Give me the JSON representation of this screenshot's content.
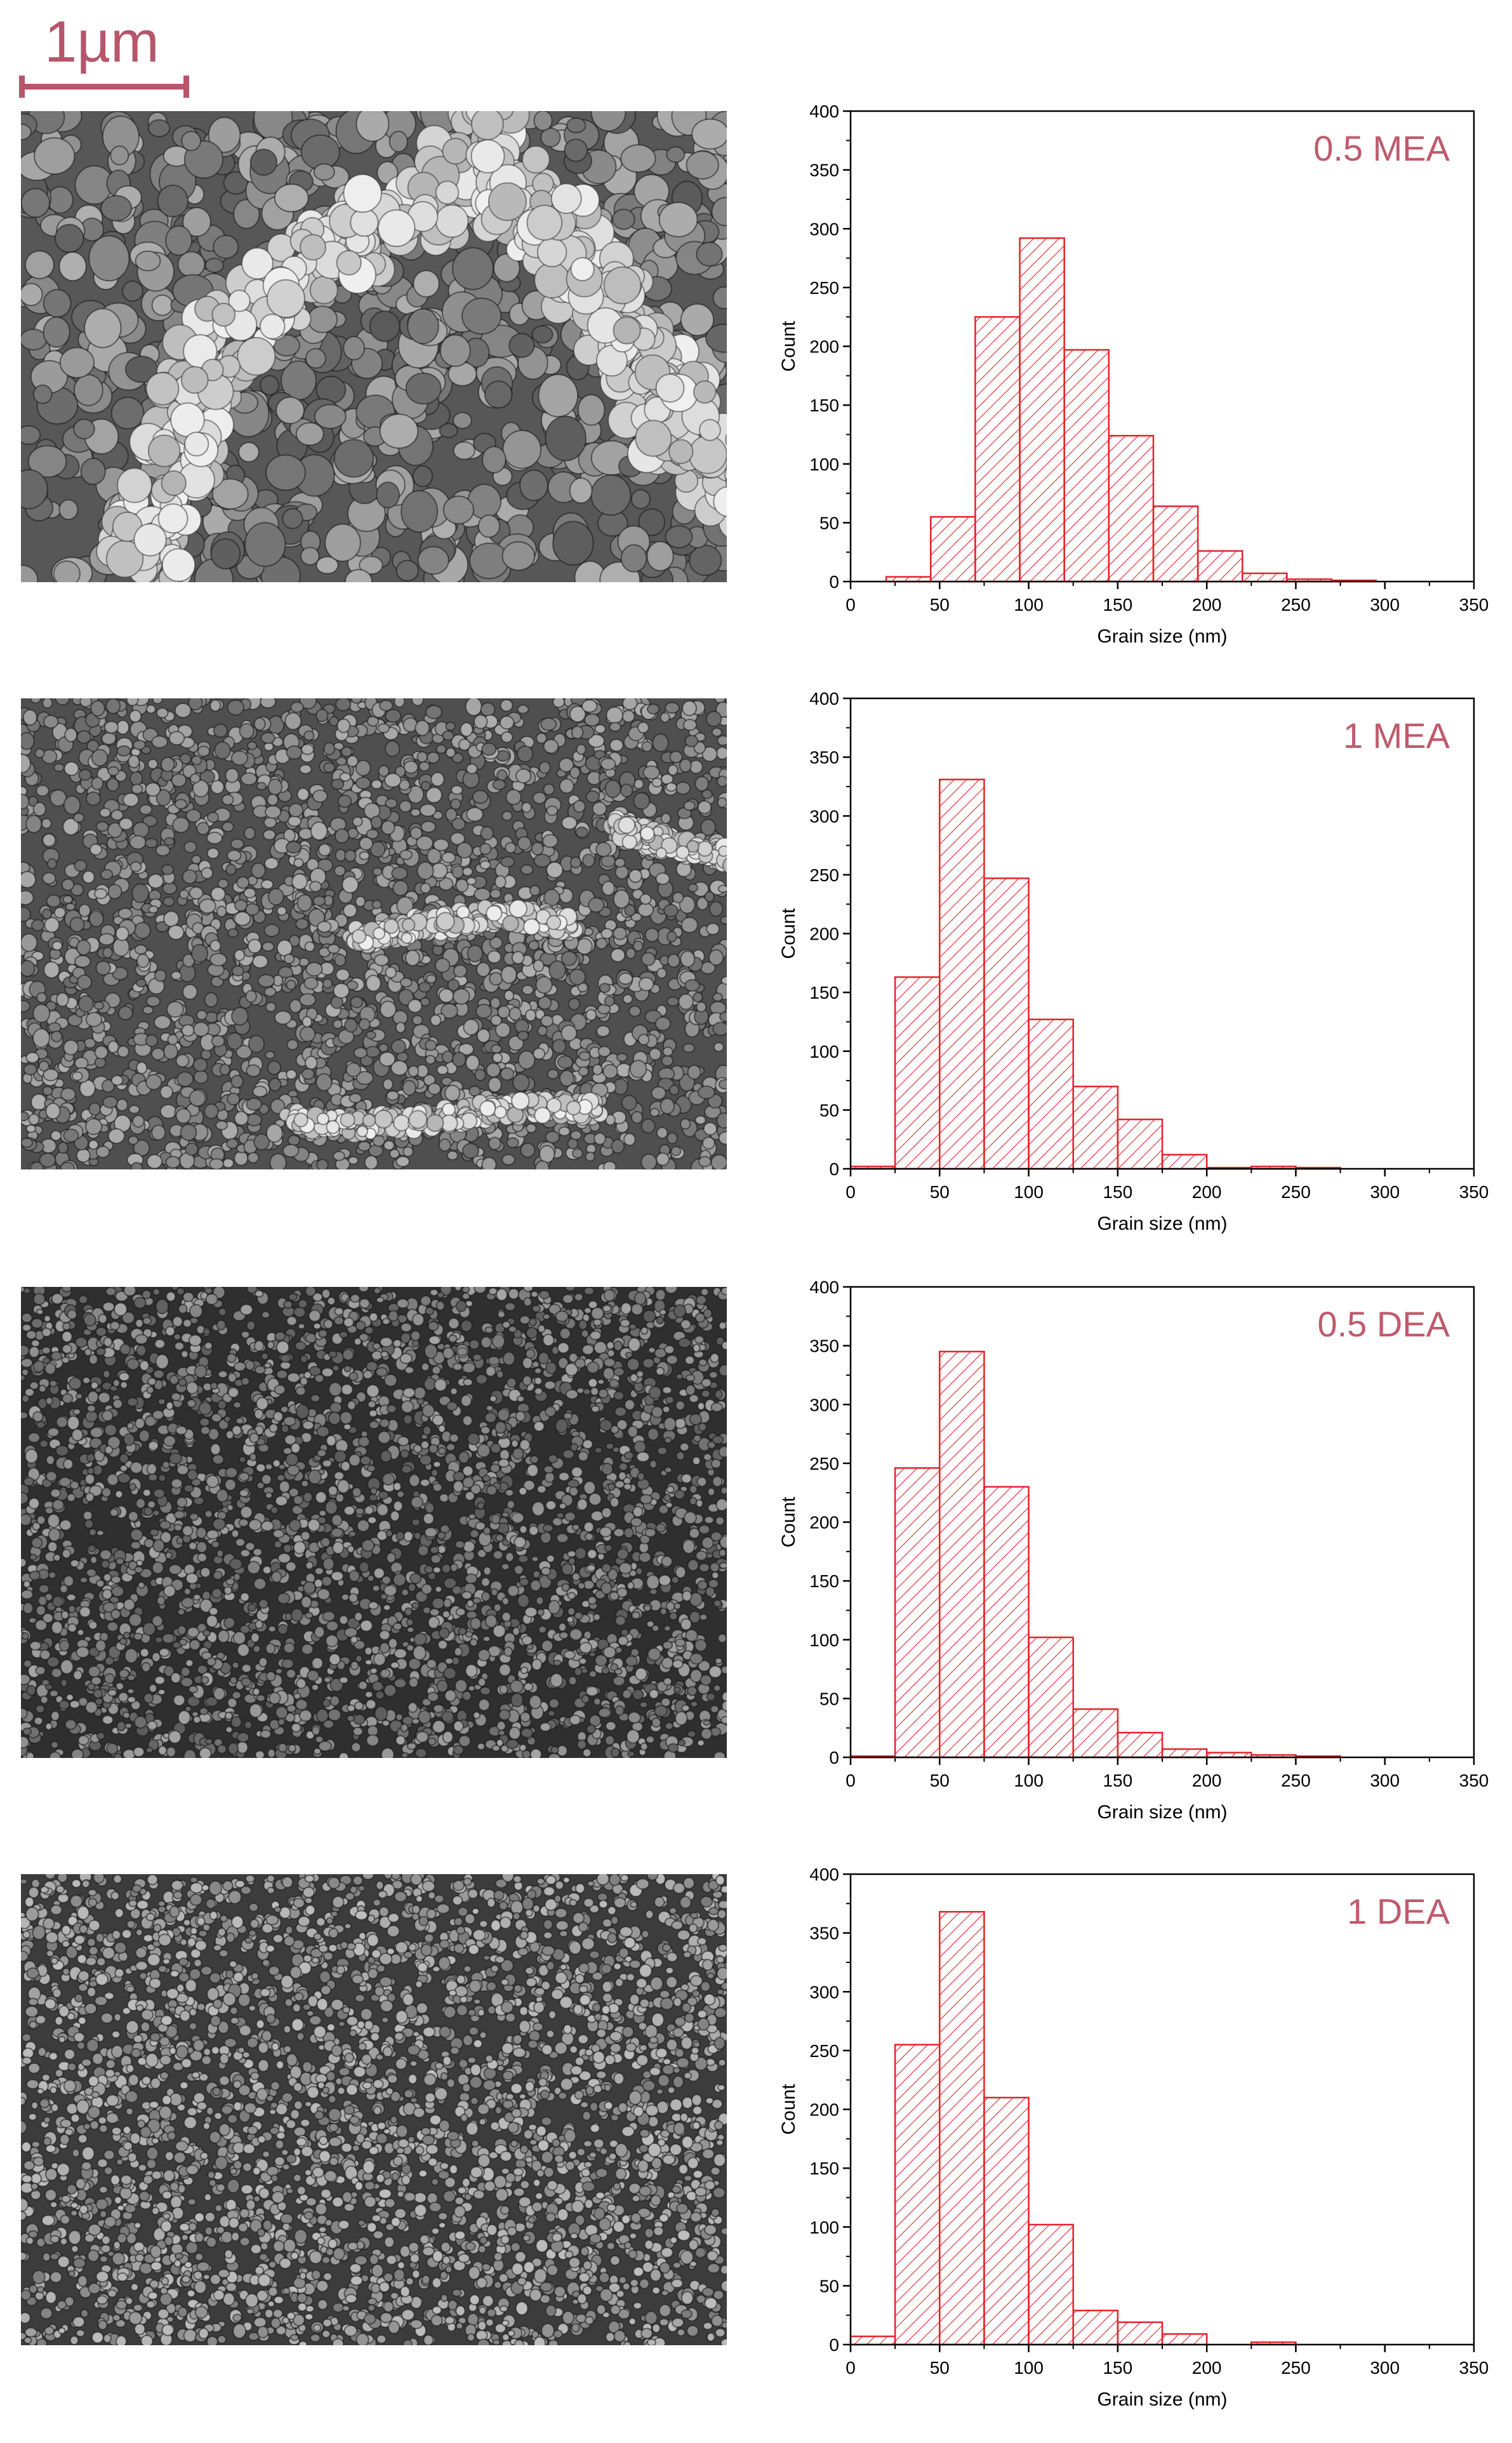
{
  "scale_bar": {
    "label": "1µm",
    "color": "#b5566a"
  },
  "colors": {
    "bar_stroke": "#e8202a",
    "label_color": "#c05a6c"
  },
  "chart_data": [
    {
      "type": "bar",
      "title": "0.5 MEA",
      "xlabel": "Grain size (nm)",
      "ylabel": "Count",
      "xlim": [
        0,
        350
      ],
      "ylim": [
        0,
        400
      ],
      "xticks": [
        0,
        50,
        100,
        150,
        200,
        250,
        300,
        350
      ],
      "yticks": [
        0,
        50,
        100,
        150,
        200,
        250,
        300,
        350,
        400
      ],
      "bin_width": 25,
      "bins": [
        {
          "x0": 20,
          "x1": 45,
          "count": 4
        },
        {
          "x0": 45,
          "x1": 70,
          "count": 55
        },
        {
          "x0": 70,
          "x1": 95,
          "count": 225
        },
        {
          "x0": 95,
          "x1": 120,
          "count": 292
        },
        {
          "x0": 120,
          "x1": 145,
          "count": 197
        },
        {
          "x0": 145,
          "x1": 170,
          "count": 124
        },
        {
          "x0": 170,
          "x1": 195,
          "count": 64
        },
        {
          "x0": 195,
          "x1": 220,
          "count": 26
        },
        {
          "x0": 220,
          "x1": 245,
          "count": 7
        },
        {
          "x0": 245,
          "x1": 270,
          "count": 2
        },
        {
          "x0": 270,
          "x1": 295,
          "count": 1
        }
      ]
    },
    {
      "type": "bar",
      "title": "1 MEA",
      "xlabel": "Grain size (nm)",
      "ylabel": "Count",
      "xlim": [
        0,
        350
      ],
      "ylim": [
        0,
        400
      ],
      "xticks": [
        0,
        50,
        100,
        150,
        200,
        250,
        300,
        350
      ],
      "yticks": [
        0,
        50,
        100,
        150,
        200,
        250,
        300,
        350,
        400
      ],
      "bin_width": 25,
      "bins": [
        {
          "x0": 0,
          "x1": 25,
          "count": 2
        },
        {
          "x0": 25,
          "x1": 50,
          "count": 163
        },
        {
          "x0": 50,
          "x1": 75,
          "count": 331
        },
        {
          "x0": 75,
          "x1": 100,
          "count": 247
        },
        {
          "x0": 100,
          "x1": 125,
          "count": 127
        },
        {
          "x0": 125,
          "x1": 150,
          "count": 70
        },
        {
          "x0": 150,
          "x1": 175,
          "count": 42
        },
        {
          "x0": 175,
          "x1": 200,
          "count": 12
        },
        {
          "x0": 200,
          "x1": 225,
          "count": 1
        },
        {
          "x0": 225,
          "x1": 250,
          "count": 2
        },
        {
          "x0": 250,
          "x1": 275,
          "count": 1
        }
      ]
    },
    {
      "type": "bar",
      "title": "0.5 DEA",
      "xlabel": "Grain size (nm)",
      "ylabel": "Count",
      "xlim": [
        0,
        350
      ],
      "ylim": [
        0,
        400
      ],
      "xticks": [
        0,
        50,
        100,
        150,
        200,
        250,
        300,
        350
      ],
      "yticks": [
        0,
        50,
        100,
        150,
        200,
        250,
        300,
        350,
        400
      ],
      "bin_width": 25,
      "bins": [
        {
          "x0": 0,
          "x1": 25,
          "count": 1
        },
        {
          "x0": 25,
          "x1": 50,
          "count": 246
        },
        {
          "x0": 50,
          "x1": 75,
          "count": 345
        },
        {
          "x0": 75,
          "x1": 100,
          "count": 230
        },
        {
          "x0": 100,
          "x1": 125,
          "count": 102
        },
        {
          "x0": 125,
          "x1": 150,
          "count": 41
        },
        {
          "x0": 150,
          "x1": 175,
          "count": 21
        },
        {
          "x0": 175,
          "x1": 200,
          "count": 7
        },
        {
          "x0": 200,
          "x1": 225,
          "count": 4
        },
        {
          "x0": 225,
          "x1": 250,
          "count": 2
        },
        {
          "x0": 250,
          "x1": 275,
          "count": 1
        }
      ]
    },
    {
      "type": "bar",
      "title": "1 DEA",
      "xlabel": "Grain size (nm)",
      "ylabel": "Count",
      "xlim": [
        0,
        350
      ],
      "ylim": [
        0,
        400
      ],
      "xticks": [
        0,
        50,
        100,
        150,
        200,
        250,
        300,
        350
      ],
      "yticks": [
        0,
        50,
        100,
        150,
        200,
        250,
        300,
        350,
        400
      ],
      "bin_width": 25,
      "bins": [
        {
          "x0": 0,
          "x1": 25,
          "count": 7
        },
        {
          "x0": 25,
          "x1": 50,
          "count": 255
        },
        {
          "x0": 50,
          "x1": 75,
          "count": 368
        },
        {
          "x0": 75,
          "x1": 100,
          "count": 210
        },
        {
          "x0": 100,
          "x1": 125,
          "count": 102
        },
        {
          "x0": 125,
          "x1": 150,
          "count": 29
        },
        {
          "x0": 150,
          "x1": 175,
          "count": 19
        },
        {
          "x0": 175,
          "x1": 200,
          "count": 9
        },
        {
          "x0": 200,
          "x1": 225,
          "count": 0
        },
        {
          "x0": 225,
          "x1": 250,
          "count": 2
        }
      ]
    }
  ]
}
